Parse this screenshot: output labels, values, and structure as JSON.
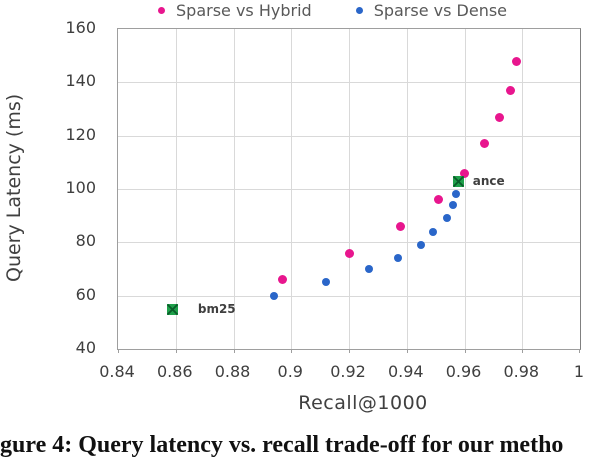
{
  "caption": "gure 4: Query latency vs. recall trade-off for our metho",
  "chart_data": {
    "type": "scatter",
    "title": "",
    "xlabel": "Recall@1000",
    "ylabel": "Query Latency (ms)",
    "xlim": [
      0.84,
      1
    ],
    "ylim": [
      40,
      160
    ],
    "x_ticks": [
      0.84,
      0.86,
      0.88,
      0.9,
      0.92,
      0.94,
      0.96,
      0.98,
      1
    ],
    "x_tick_labels": [
      "0.84",
      "0.86",
      "0.88",
      "0.9",
      "0.92",
      "0.94",
      "0.96",
      "0.98",
      "1"
    ],
    "y_ticks": [
      40,
      60,
      80,
      100,
      120,
      140,
      160
    ],
    "y_tick_labels": [
      "40",
      "60",
      "80",
      "100",
      "120",
      "140",
      "160"
    ],
    "grid": true,
    "legend_position": "top-center",
    "colors": {
      "grid": "#d9d9d9",
      "frame": "#9e9e9e",
      "tick_text": "#3f3f3f",
      "legend_text": "#595959",
      "axis_title_text": "#404040",
      "baseline_green": "#1fa04a"
    },
    "series": [
      {
        "name": "Sparse vs Hybrid",
        "marker": "circle",
        "color": "#e8168e",
        "points": [
          [
            0.897,
            66
          ],
          [
            0.92,
            76
          ],
          [
            0.938,
            86
          ],
          [
            0.951,
            96
          ],
          [
            0.96,
            106
          ],
          [
            0.967,
            117
          ],
          [
            0.972,
            127
          ],
          [
            0.976,
            137
          ],
          [
            0.978,
            148
          ]
        ]
      },
      {
        "name": "Sparse vs Dense",
        "marker": "circle",
        "color": "#2a66c9",
        "points": [
          [
            0.894,
            60
          ],
          [
            0.912,
            65
          ],
          [
            0.927,
            70
          ],
          [
            0.937,
            74
          ],
          [
            0.945,
            79
          ],
          [
            0.949,
            84
          ],
          [
            0.954,
            89
          ],
          [
            0.956,
            94
          ],
          [
            0.957,
            98
          ]
        ]
      }
    ],
    "annotations": [
      {
        "label": "bm25",
        "x": 0.859,
        "y": 55,
        "marker": "square-x",
        "color": "#1fa04a"
      },
      {
        "label": "ance",
        "x": 0.958,
        "y": 103,
        "marker": "square-x",
        "color": "#1fa04a"
      }
    ]
  }
}
